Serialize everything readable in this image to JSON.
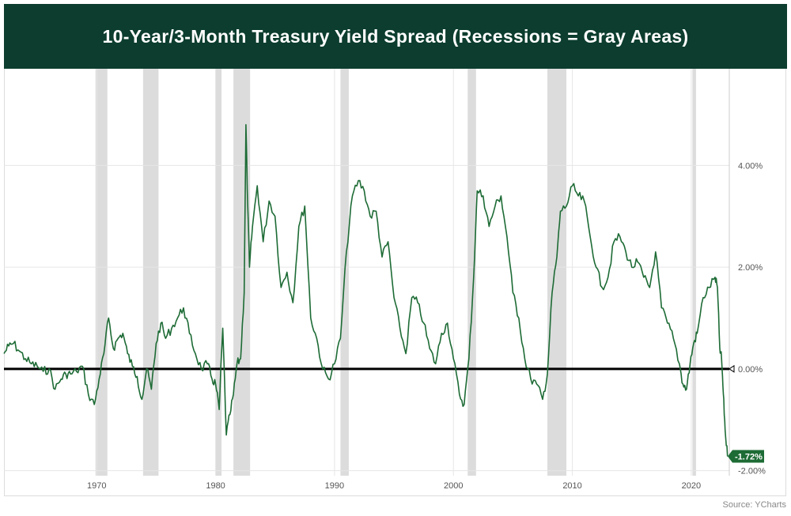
{
  "chart_data": {
    "type": "line",
    "title": "10-Year/3-Month Treasury Yield Spread (Recessions = Gray Areas)",
    "source": "Source: YCharts",
    "xlabel": "",
    "ylabel": "",
    "xlim": [
      1962.2,
      2023.2
    ],
    "ylim": [
      -2.1,
      5.9
    ],
    "x_ticks": [
      {
        "value": 1970,
        "label": "1970"
      },
      {
        "value": 1980,
        "label": "1980"
      },
      {
        "value": 1990,
        "label": "1990"
      },
      {
        "value": 2000,
        "label": "2000"
      },
      {
        "value": 2010,
        "label": "2010"
      },
      {
        "value": 2020,
        "label": "2020"
      }
    ],
    "y_ticks": [
      {
        "value": 4,
        "label": "4.00%"
      },
      {
        "value": 2,
        "label": "2.00%"
      },
      {
        "value": 0,
        "label": "0.00%"
      },
      {
        "value": -2,
        "label": "-2.00%"
      }
    ],
    "recessions": [
      [
        1969.9,
        1970.9
      ],
      [
        1973.9,
        1975.2
      ],
      [
        1980.0,
        1980.5
      ],
      [
        1981.5,
        1982.9
      ],
      [
        1990.5,
        1991.2
      ],
      [
        2001.2,
        2001.9
      ],
      [
        2007.9,
        2009.5
      ],
      [
        2020.1,
        2020.4
      ]
    ],
    "zero_line": 0,
    "last_value": {
      "x": 2023.05,
      "y": -1.72,
      "label": "-1.72%"
    },
    "colors": {
      "title_bg": "#0c3d2e",
      "line": "#1d6b35",
      "recession": "#dcdcdc",
      "zero_line": "#000000",
      "grid": "#e6e6e6",
      "badge_bg": "#1d6b35"
    },
    "series": [
      {
        "name": "10-Year/3-Month Treasury Yield Spread",
        "x": [
          1962.2,
          1962.6,
          1963.0,
          1963.5,
          1964.0,
          1964.5,
          1965.0,
          1965.5,
          1966.0,
          1966.5,
          1967.0,
          1967.4,
          1967.8,
          1968.3,
          1968.8,
          1969.3,
          1969.8,
          1970.2,
          1970.6,
          1971.0,
          1971.4,
          1971.8,
          1972.2,
          1972.6,
          1973.0,
          1973.4,
          1973.8,
          1974.2,
          1974.6,
          1975.0,
          1975.4,
          1975.8,
          1976.3,
          1976.8,
          1977.3,
          1977.8,
          1978.3,
          1978.8,
          1979.3,
          1979.7,
          1980.0,
          1980.3,
          1980.6,
          1980.9,
          1981.2,
          1981.5,
          1981.8,
          1982.1,
          1982.4,
          1982.55,
          1982.7,
          1982.85,
          1983.1,
          1983.5,
          1984.0,
          1984.5,
          1985.0,
          1985.5,
          1986.0,
          1986.5,
          1987.0,
          1987.5,
          1988.0,
          1988.5,
          1989.0,
          1989.5,
          1990.0,
          1990.5,
          1991.0,
          1991.5,
          1992.0,
          1992.5,
          1993.0,
          1993.5,
          1994.0,
          1994.5,
          1995.0,
          1995.5,
          1996.0,
          1996.5,
          1997.0,
          1997.5,
          1998.0,
          1998.5,
          1999.0,
          1999.5,
          2000.0,
          2000.5,
          2000.9,
          2001.3,
          2001.7,
          2002.0,
          2002.5,
          2003.0,
          2003.5,
          2004.0,
          2004.5,
          2005.0,
          2005.5,
          2006.0,
          2006.5,
          2007.0,
          2007.5,
          2007.9,
          2008.3,
          2008.7,
          2009.0,
          2009.5,
          2010.0,
          2010.5,
          2011.0,
          2011.5,
          2012.0,
          2012.5,
          2013.0,
          2013.5,
          2014.0,
          2014.5,
          2015.0,
          2015.5,
          2016.0,
          2016.5,
          2017.0,
          2017.5,
          2018.0,
          2018.5,
          2019.0,
          2019.3,
          2019.6,
          2019.9,
          2020.2,
          2020.5,
          2021.0,
          2021.5,
          2022.0,
          2022.2,
          2022.4,
          2022.55,
          2022.7,
          2022.85,
          2023.05
        ],
        "y": [
          0.3,
          0.45,
          0.5,
          0.35,
          0.2,
          0.1,
          0.05,
          -0.05,
          0.0,
          -0.4,
          -0.2,
          -0.1,
          -0.1,
          -0.05,
          0.05,
          -0.5,
          -0.7,
          -0.2,
          0.3,
          1.0,
          0.4,
          0.6,
          0.7,
          0.3,
          0.05,
          -0.15,
          -0.6,
          0.0,
          -0.4,
          0.5,
          0.9,
          0.6,
          0.8,
          1.0,
          1.2,
          0.7,
          0.3,
          0.0,
          0.1,
          -0.2,
          -0.3,
          -0.8,
          0.8,
          -1.3,
          -0.9,
          -0.5,
          0.1,
          0.2,
          1.5,
          4.8,
          3.2,
          2.0,
          2.8,
          3.6,
          2.5,
          3.3,
          3.0,
          1.6,
          1.9,
          1.3,
          2.8,
          3.2,
          1.0,
          0.6,
          0.0,
          -0.2,
          0.1,
          0.6,
          2.3,
          3.4,
          3.7,
          3.5,
          3.0,
          3.1,
          2.2,
          2.5,
          1.4,
          0.8,
          0.3,
          1.4,
          1.3,
          0.9,
          0.4,
          0.1,
          0.7,
          0.9,
          0.2,
          -0.5,
          -0.7,
          0.2,
          1.8,
          3.5,
          3.4,
          2.8,
          3.2,
          3.4,
          2.6,
          1.5,
          1.0,
          0.2,
          -0.2,
          -0.3,
          -0.6,
          -0.1,
          1.5,
          2.2,
          3.1,
          3.2,
          3.6,
          3.4,
          3.3,
          2.6,
          2.0,
          1.6,
          1.8,
          2.5,
          2.6,
          2.3,
          2.0,
          2.1,
          1.8,
          1.6,
          2.3,
          1.2,
          0.9,
          0.6,
          0.1,
          -0.3,
          -0.4,
          0.1,
          0.5,
          0.7,
          1.4,
          1.6,
          1.8,
          1.6,
          0.4,
          0.2,
          -0.5,
          -1.2,
          -1.72
        ]
      }
    ]
  }
}
